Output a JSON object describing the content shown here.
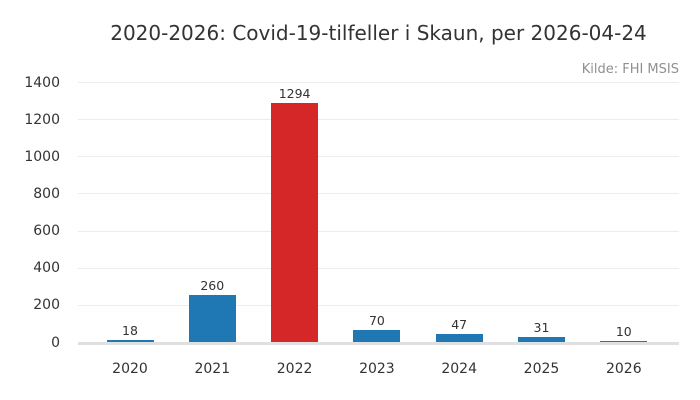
{
  "chart_data": {
    "type": "bar",
    "title": "2020-2026: Covid-19-tilfeller i Skaun, per 2026-04-24",
    "source_note": "Kilde: FHI MSIS",
    "categories": [
      "2020",
      "2021",
      "2022",
      "2023",
      "2024",
      "2025",
      "2026"
    ],
    "values": [
      18,
      260,
      1294,
      70,
      47,
      31,
      10
    ],
    "data_labels": [
      "18",
      "260",
      "1294",
      "70",
      "47",
      "31",
      "10"
    ],
    "bar_colors": [
      "#1f77b4",
      "#1f77b4",
      "#d62728",
      "#1f77b4",
      "#1f77b4",
      "#1f77b4",
      "#1f77b4"
    ],
    "highlighted_category": "2022",
    "xlabel": "",
    "ylabel": "",
    "ylim": [
      0,
      1400
    ],
    "yticks": [
      0,
      200,
      400,
      600,
      800,
      1000,
      1200,
      1400
    ],
    "grid": "horizontal",
    "legend": "none",
    "colors": {
      "bar_default": "#1f77b4",
      "bar_highlight": "#d62728",
      "gridline": "#ececec",
      "axis_line": "#e0e0e0",
      "title_text": "#333333",
      "tick_text": "#333333",
      "source_text": "#8f8f8f",
      "background": "#ffffff"
    }
  }
}
